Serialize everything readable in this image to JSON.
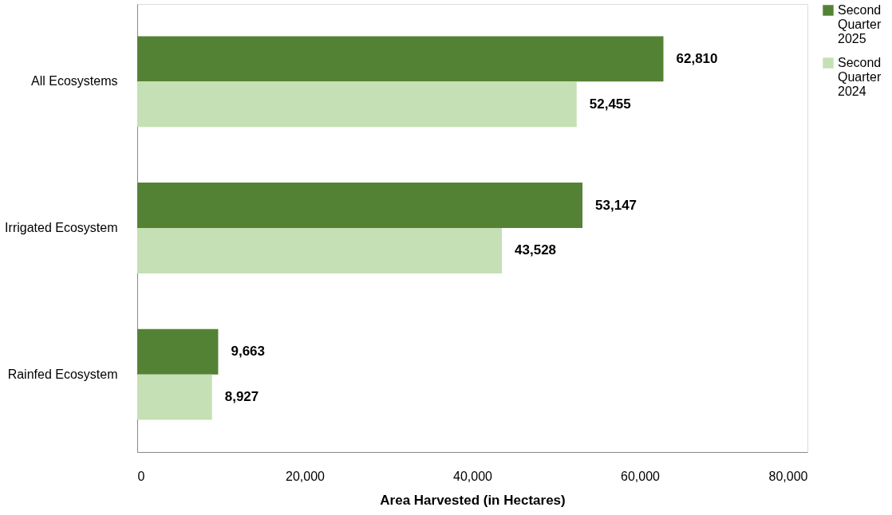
{
  "chart_data": {
    "type": "bar",
    "orientation": "horizontal",
    "xlabel": "Area Harvested (in Hectares)",
    "categories": [
      "All Ecosystems",
      "Irrigated Ecosystem",
      "Rainfed Ecosystem"
    ],
    "series": [
      {
        "name": "Second Quarter 2025",
        "color": "#548235",
        "values": [
          62810,
          53147,
          9663
        ],
        "value_labels": [
          "62,810",
          "53,147",
          "9,663"
        ]
      },
      {
        "name": "Second Quarter 2024",
        "color": "#c5e0b4",
        "values": [
          52455,
          43528,
          8927
        ],
        "value_labels": [
          "52,455",
          "43,528",
          "8,927"
        ]
      }
    ],
    "xlim": [
      0,
      80000
    ],
    "xticks": [
      0,
      {
        "value": 20000,
        "label": "20,000"
      },
      {
        "value": 40000,
        "label": "40,000"
      },
      {
        "value": 60000,
        "label": "60,000"
      },
      {
        "value": 80000,
        "label": "80,000"
      }
    ],
    "legend": "right",
    "grid": false
  }
}
